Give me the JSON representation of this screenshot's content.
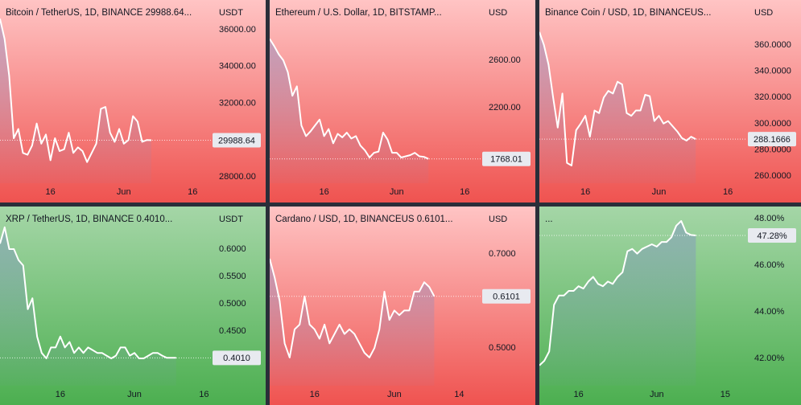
{
  "chart_data": [
    {
      "type": "line",
      "title": "Bitcoin / TetherUS, 1D, BINANCE  29988.64...",
      "unit": "USDT",
      "color": "#ffffff",
      "background": {
        "top": "#ffc4c4",
        "bottom": "#ef5350"
      },
      "values": [
        36600,
        35500,
        33500,
        30100,
        30600,
        29300,
        29200,
        29700,
        30900,
        29800,
        30300,
        28900,
        30100,
        29400,
        29500,
        30400,
        29300,
        29600,
        29400,
        28800,
        29300,
        29800,
        31700,
        31800,
        30400,
        29900,
        30600,
        29800,
        30000,
        31300,
        31000,
        29900,
        30000,
        29988.64
      ],
      "current": {
        "value": 29988.64,
        "label": "29988.64"
      },
      "xlim": [
        0,
        46
      ],
      "xticks": [
        {
          "value": 11,
          "label": "16"
        },
        {
          "value": 27,
          "label": "Jun"
        },
        {
          "value": 42,
          "label": "16"
        }
      ],
      "ylim": [
        27650,
        37620
      ],
      "yticks": [
        {
          "value": 28000,
          "label": "28000.00"
        },
        {
          "value": 32000,
          "label": "32000.00"
        },
        {
          "value": 34000,
          "label": "34000.00"
        },
        {
          "value": 36000,
          "label": "36000.00"
        }
      ]
    },
    {
      "type": "line",
      "title": "Ethereum / U.S. Dollar, 1D, BITSTAMP...",
      "unit": "USD",
      "color": "#ffffff",
      "background": {
        "top": "#ffc4c4",
        "bottom": "#ef5350"
      },
      "values": [
        2780,
        2720,
        2650,
        2600,
        2500,
        2300,
        2380,
        2050,
        1960,
        2000,
        2050,
        2100,
        1960,
        2020,
        1900,
        1980,
        1950,
        1990,
        1940,
        1960,
        1880,
        1840,
        1780,
        1820,
        1830,
        1990,
        1930,
        1820,
        1820,
        1780,
        1790,
        1800,
        1820,
        1790,
        1785,
        1768.01
      ],
      "current": {
        "value": 1768.01,
        "label": "1768.01"
      },
      "xlim": [
        0,
        46.5
      ],
      "xticks": [
        {
          "value": 12,
          "label": "16"
        },
        {
          "value": 28,
          "label": "Jun"
        },
        {
          "value": 43,
          "label": "16"
        }
      ],
      "ylim": [
        1563,
        3108
      ],
      "yticks": [
        {
          "value": 2200,
          "label": "2200.00"
        },
        {
          "value": 2600,
          "label": "2600.00"
        }
      ]
    },
    {
      "type": "line",
      "title": "Binance Coin / USD, 1D, BINANCEUS...",
      "unit": "USD",
      "color": "#ffffff",
      "background": {
        "top": "#ffc4c4",
        "bottom": "#ef5350"
      },
      "values": [
        370,
        360,
        345,
        320,
        297,
        323,
        270,
        268,
        295,
        300,
        306,
        290,
        310,
        308,
        320,
        325,
        323,
        332,
        330,
        308,
        306,
        310,
        310,
        322,
        321,
        302,
        306,
        300,
        302,
        298,
        294,
        289,
        287,
        290,
        288.1666
      ],
      "current": {
        "value": 288.1666,
        "label": "288.1666"
      },
      "xlim": [
        0,
        45
      ],
      "xticks": [
        {
          "value": 10,
          "label": "16"
        },
        {
          "value": 26,
          "label": "Jun"
        },
        {
          "value": 41,
          "label": "16"
        }
      ],
      "ylim": [
        254.5,
        394.4
      ],
      "yticks": [
        {
          "value": 260,
          "label": "260.0000"
        },
        {
          "value": 280,
          "label": "280.0000"
        },
        {
          "value": 300,
          "label": "300.0000"
        },
        {
          "value": 320,
          "label": "320.0000"
        },
        {
          "value": 340,
          "label": "340.0000"
        },
        {
          "value": 360,
          "label": "360.0000"
        }
      ]
    },
    {
      "type": "line",
      "title": "XRP / TetherUS, 1D, BINANCE  0.4010...",
      "unit": "USDT",
      "color": "#ffffff",
      "background": {
        "top": "#a5d6a7",
        "bottom": "#4caf50"
      },
      "values": [
        0.61,
        0.64,
        0.6,
        0.6,
        0.58,
        0.57,
        0.49,
        0.51,
        0.44,
        0.41,
        0.4,
        0.42,
        0.42,
        0.44,
        0.42,
        0.43,
        0.41,
        0.42,
        0.41,
        0.42,
        0.415,
        0.41,
        0.41,
        0.405,
        0.4,
        0.405,
        0.42,
        0.42,
        0.405,
        0.41,
        0.4,
        0.4,
        0.405,
        0.41,
        0.41,
        0.405,
        0.401,
        0.401,
        0.401
      ],
      "current": {
        "value": 0.401,
        "label": "0.4010"
      },
      "xlim": [
        0,
        45.5
      ],
      "xticks": [
        {
          "value": 13,
          "label": "16"
        },
        {
          "value": 29,
          "label": "Jun"
        },
        {
          "value": 44,
          "label": "16"
        }
      ],
      "ylim": [
        0.35,
        0.678
      ],
      "yticks": [
        {
          "value": 0.45,
          "label": "0.4500"
        },
        {
          "value": 0.5,
          "label": "0.5000"
        },
        {
          "value": 0.55,
          "label": "0.5500"
        },
        {
          "value": 0.6,
          "label": "0.6000"
        }
      ]
    },
    {
      "type": "line",
      "title": "Cardano / USD, 1D, BINANCEUS  0.6101...",
      "unit": "USD",
      "color": "#ffffff",
      "background": {
        "top": "#ffc4c4",
        "bottom": "#ef5350"
      },
      "values": [
        0.69,
        0.65,
        0.6,
        0.51,
        0.48,
        0.54,
        0.55,
        0.61,
        0.55,
        0.54,
        0.52,
        0.55,
        0.51,
        0.53,
        0.55,
        0.53,
        0.54,
        0.53,
        0.51,
        0.49,
        0.48,
        0.5,
        0.54,
        0.62,
        0.56,
        0.58,
        0.57,
        0.58,
        0.58,
        0.62,
        0.62,
        0.64,
        0.63,
        0.6101
      ],
      "current": {
        "value": 0.6101,
        "label": "0.6101"
      },
      "xlim": [
        0,
        42.3
      ],
      "xticks": [
        {
          "value": 9,
          "label": "16"
        },
        {
          "value": 25,
          "label": "Jun"
        },
        {
          "value": 38,
          "label": "14"
        }
      ],
      "ylim": [
        0.42,
        0.801
      ],
      "yticks": [
        {
          "value": 0.5,
          "label": "0.5000"
        },
        {
          "value": 0.7,
          "label": "0.7000"
        }
      ]
    },
    {
      "type": "line",
      "title": "...",
      "color": "#ffffff",
      "background": {
        "top": "#a5d6a7",
        "bottom": "#4caf50"
      },
      "values": [
        41.7,
        41.9,
        42.3,
        44.3,
        44.7,
        44.7,
        44.9,
        44.9,
        45.1,
        45.0,
        45.3,
        45.5,
        45.2,
        45.1,
        45.3,
        45.2,
        45.5,
        45.7,
        46.6,
        46.7,
        46.5,
        46.7,
        46.8,
        46.9,
        46.8,
        47.0,
        47.0,
        47.2,
        47.7,
        47.9,
        47.4,
        47.3,
        47.28
      ],
      "current": {
        "value": 47.28,
        "label": "47.28%"
      },
      "xlim": [
        0,
        42.3
      ],
      "xticks": [
        {
          "value": 8,
          "label": "16"
        },
        {
          "value": 24,
          "label": "Jun"
        },
        {
          "value": 38,
          "label": "15"
        }
      ],
      "ylim": [
        40.83,
        48.52
      ],
      "yticks": [
        {
          "value": 42,
          "label": "42.00%"
        },
        {
          "value": 44,
          "label": "44.00%"
        },
        {
          "value": 46,
          "label": "46.00%"
        },
        {
          "value": 48,
          "label": "48.00%"
        }
      ]
    }
  ]
}
